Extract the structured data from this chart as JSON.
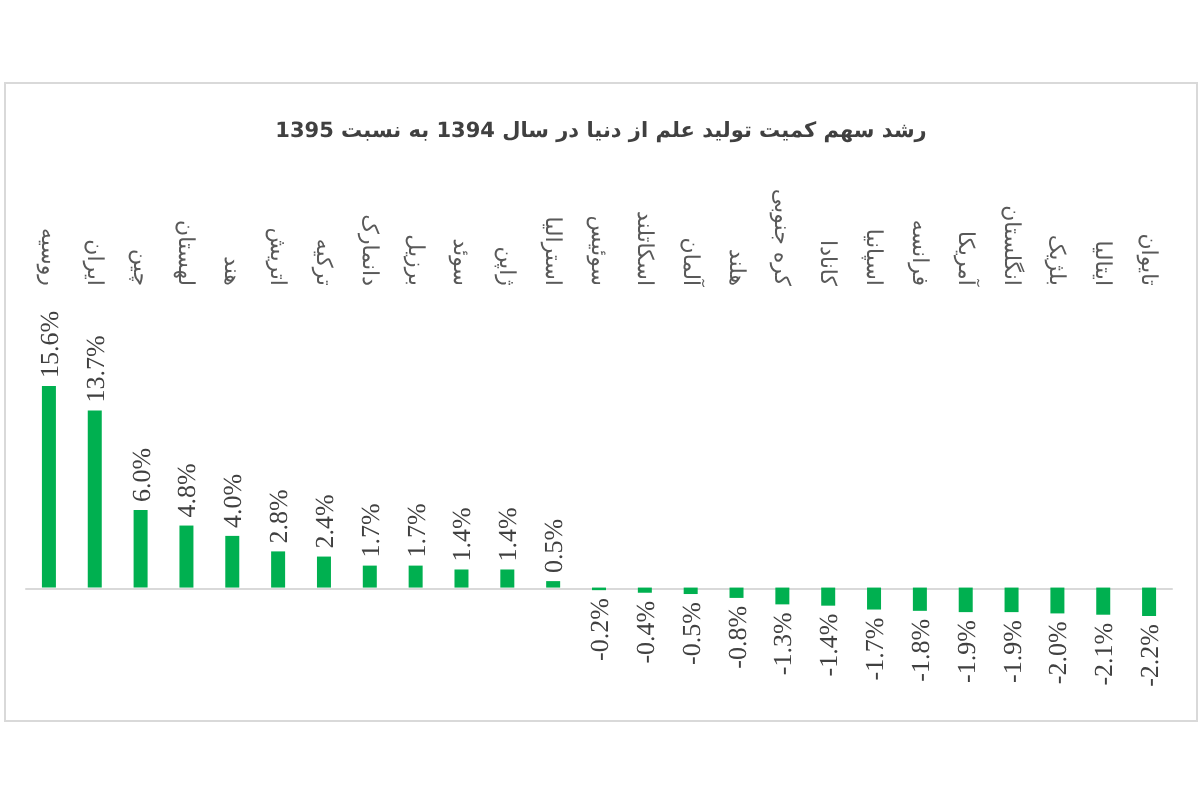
{
  "chart_data": {
    "type": "bar",
    "title": "رشد سهم کمیت تولید علم از دنیا در سال 1394 به نسبت 1395",
    "categories": [
      "روسیه",
      "ایران",
      "چین",
      "لهستان",
      "هند",
      "اتریش",
      "ترکیه",
      "دانمارک",
      "برزیل",
      "سوئد",
      "ژاپن",
      "استرالیا",
      "سوئیس",
      "اسکاتلند",
      "آلمان",
      "هلند",
      "کره جنوبی",
      "کانادا",
      "اسپانیا",
      "فرانسه",
      "آمریکا",
      "انگلستان",
      "بلژیک",
      "ایتالیا",
      "تایوان"
    ],
    "values": [
      15.6,
      13.7,
      6.0,
      4.8,
      4.0,
      2.8,
      2.4,
      1.7,
      1.7,
      1.4,
      1.4,
      0.5,
      -0.2,
      -0.4,
      -0.5,
      -0.8,
      -1.3,
      -1.4,
      -1.7,
      -1.8,
      -1.9,
      -1.9,
      -2.0,
      -2.1,
      -2.2
    ],
    "value_labels": [
      "15.6%",
      "13.7%",
      "6.0%",
      "4.8%",
      "4.0%",
      "2.8%",
      "2.4%",
      "1.7%",
      "1.7%",
      "1.4%",
      "1.4%",
      "0.5%",
      "-0.2%",
      "-0.4%",
      "-0.5%",
      "-0.8%",
      "-1.3%",
      "-1.4%",
      "-1.7%",
      "-1.8%",
      "-1.9%",
      "-1.9%",
      "-2.0%",
      "-2.1%",
      "-2.2%"
    ],
    "color": "#00b050"
  }
}
